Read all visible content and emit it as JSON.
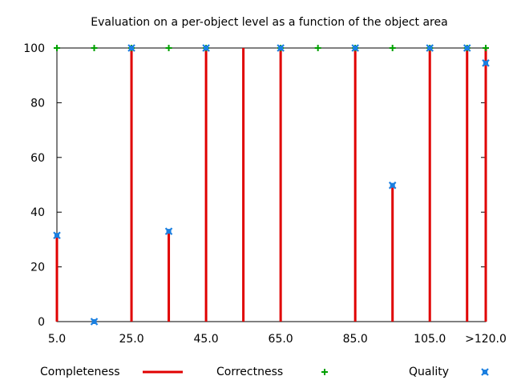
{
  "chart_data": {
    "type": "scatter",
    "title": "Evaluation on a per-object level as a function of the object area",
    "xlabel": "",
    "ylabel": "",
    "xlim": [
      5,
      120
    ],
    "ylim": [
      0,
      100
    ],
    "x_tick_values": [
      5,
      25,
      45,
      65,
      85,
      105,
      120
    ],
    "x_tick_labels": [
      "5.0",
      "25.0",
      "45.0",
      "65.0",
      "85.0",
      "105.0",
      ">120.0"
    ],
    "y_ticks": [
      0,
      20,
      40,
      60,
      80,
      100
    ],
    "legend_position": "bottom",
    "grid": false,
    "x": [
      5,
      15,
      25,
      35,
      45,
      55,
      65,
      75,
      85,
      95,
      105,
      115,
      120
    ],
    "series": [
      {
        "name": "Completeness",
        "style": "impulses",
        "color": "#e00000",
        "values": [
          31,
          0,
          100,
          33,
          100,
          100,
          100,
          0,
          100,
          50,
          100,
          100,
          100
        ]
      },
      {
        "name": "Correctness",
        "style": "points",
        "marker": "plus",
        "color": "#00a000",
        "values": [
          100,
          100,
          100,
          100,
          100,
          null,
          100,
          100,
          100,
          100,
          100,
          100,
          100
        ]
      },
      {
        "name": "Quality",
        "style": "points",
        "marker": "x-square",
        "color": "#1a7fe0",
        "values": [
          31.5,
          0,
          100,
          33,
          100,
          null,
          100,
          null,
          100,
          49.8,
          100,
          100,
          94.5
        ]
      }
    ]
  }
}
